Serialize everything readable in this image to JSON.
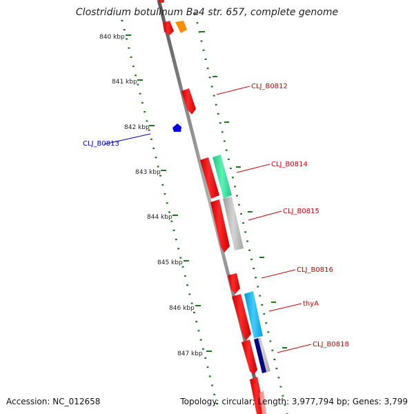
{
  "header": {
    "title": "Clostridium botulinum Ba4 str. 657, complete genome"
  },
  "footer": {
    "accession": "Accession: NC_012658",
    "summary": "Topology: circular; Length: 3,977,794 bp; Genes: 3,799"
  },
  "ticks": [
    "840 kbp",
    "841 kbp",
    "842 kbp",
    "843 kbp",
    "844 kbp",
    "845 kbp",
    "846 kbp",
    "847 kbp"
  ],
  "gene_labels": [
    "CLJ_B0812",
    "CLJ_B0813",
    "CLJ_B0814",
    "CLJ_B0815",
    "CLJ_B0816",
    "thyA",
    "CLJ_B0818"
  ],
  "colors": {
    "backbone": "#7a7a7a",
    "tick": "#1a7a1a",
    "gene_red": "#ff0000",
    "gene_blue": "#0000ee",
    "gene_orange": "#ff8c00",
    "cog_green": "#3be8a0",
    "cog_gray": "#b8b8b8",
    "cog_cyan": "#19b8f0",
    "cog_navy": "#000080",
    "label_red": "#cc0000",
    "label_blue": "#0000cc"
  }
}
